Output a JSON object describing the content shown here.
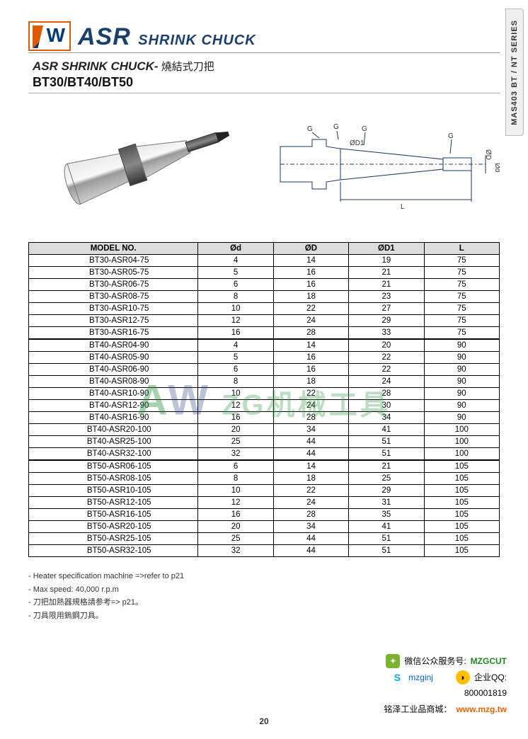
{
  "side_tab": "MAS403 BT / NT SERIES",
  "header": {
    "title_big": "ASR",
    "title_small": "SHRINK CHUCK",
    "subtitle_en": "ASR SHRINK CHUCK-",
    "subtitle_cn": " 燒結式刀把",
    "models_line": "BT30/BT40/BT50"
  },
  "watermark_text": "ZG机械工具",
  "diagram_labels": {
    "g": "G",
    "d": "ØD",
    "d1": "ØD1",
    "l": "L",
    "pd": "Ød"
  },
  "table": {
    "columns": [
      "MODEL  NO.",
      "Ød",
      "ØD",
      "ØD1",
      "L"
    ],
    "groups": [
      {
        "rows": [
          [
            "BT30-ASR04-75",
            "4",
            "14",
            "19",
            "75"
          ],
          [
            "BT30-ASR05-75",
            "5",
            "16",
            "21",
            "75"
          ],
          [
            "BT30-ASR06-75",
            "6",
            "16",
            "21",
            "75"
          ],
          [
            "BT30-ASR08-75",
            "8",
            "18",
            "23",
            "75"
          ],
          [
            "BT30-ASR10-75",
            "10",
            "22",
            "27",
            "75"
          ],
          [
            "BT30-ASR12-75",
            "12",
            "24",
            "29",
            "75"
          ],
          [
            "BT30-ASR16-75",
            "16",
            "28",
            "33",
            "75"
          ]
        ]
      },
      {
        "rows": [
          [
            "BT40-ASR04-90",
            "4",
            "14",
            "20",
            "90"
          ],
          [
            "BT40-ASR05-90",
            "5",
            "16",
            "22",
            "90"
          ],
          [
            "BT40-ASR06-90",
            "6",
            "16",
            "22",
            "90"
          ],
          [
            "BT40-ASR08-90",
            "8",
            "18",
            "24",
            "90"
          ],
          [
            "BT40-ASR10-90",
            "10",
            "22",
            "28",
            "90"
          ],
          [
            "BT40-ASR12-90",
            "12",
            "24",
            "30",
            "90"
          ],
          [
            "BT40-ASR16-90",
            "16",
            "28",
            "34",
            "90"
          ],
          [
            "BT40-ASR20-100",
            "20",
            "34",
            "41",
            "100"
          ],
          [
            "BT40-ASR25-100",
            "25",
            "44",
            "51",
            "100"
          ],
          [
            "BT40-ASR32-100",
            "32",
            "44",
            "51",
            "100"
          ]
        ]
      },
      {
        "rows": [
          [
            "BT50-ASR06-105",
            "6",
            "14",
            "21",
            "105"
          ],
          [
            "BT50-ASR08-105",
            "8",
            "18",
            "25",
            "105"
          ],
          [
            "BT50-ASR10-105",
            "10",
            "22",
            "29",
            "105"
          ],
          [
            "BT50-ASR12-105",
            "12",
            "24",
            "31",
            "105"
          ],
          [
            "BT50-ASR16-105",
            "16",
            "28",
            "35",
            "105"
          ],
          [
            "BT50-ASR20-105",
            "20",
            "34",
            "41",
            "105"
          ],
          [
            "BT50-ASR25-105",
            "25",
            "44",
            "51",
            "105"
          ],
          [
            "BT50-ASR32-105",
            "32",
            "44",
            "51",
            "105"
          ]
        ]
      }
    ]
  },
  "notes": [
    "- Heater specification machine =>refer to p21",
    "- Max speed: 40,000 r.p.m",
    "- 刀把加熱器規格請参考=> p21。",
    "- 刀具限用鎢鋼刀具。"
  ],
  "page_number": "20",
  "footer": {
    "wechat_label": "微信公众服务号:",
    "wechat_id": "MZGCUT",
    "skype_label": "mzginj",
    "qq_label": "企业QQ:",
    "qq_id": "800001819",
    "shop_label": "铭泽工业品商城：",
    "shop_url": "www.mzg.tw"
  },
  "style": {
    "header_color": "#1a3e6e",
    "accent_orange": "#e05a00",
    "table_header_bg": "#dcdcdc",
    "border_color": "#000000",
    "watermark_green": "rgba(60,160,80,0.35)",
    "col_widths_pct": [
      36,
      16,
      16,
      16,
      16
    ]
  }
}
